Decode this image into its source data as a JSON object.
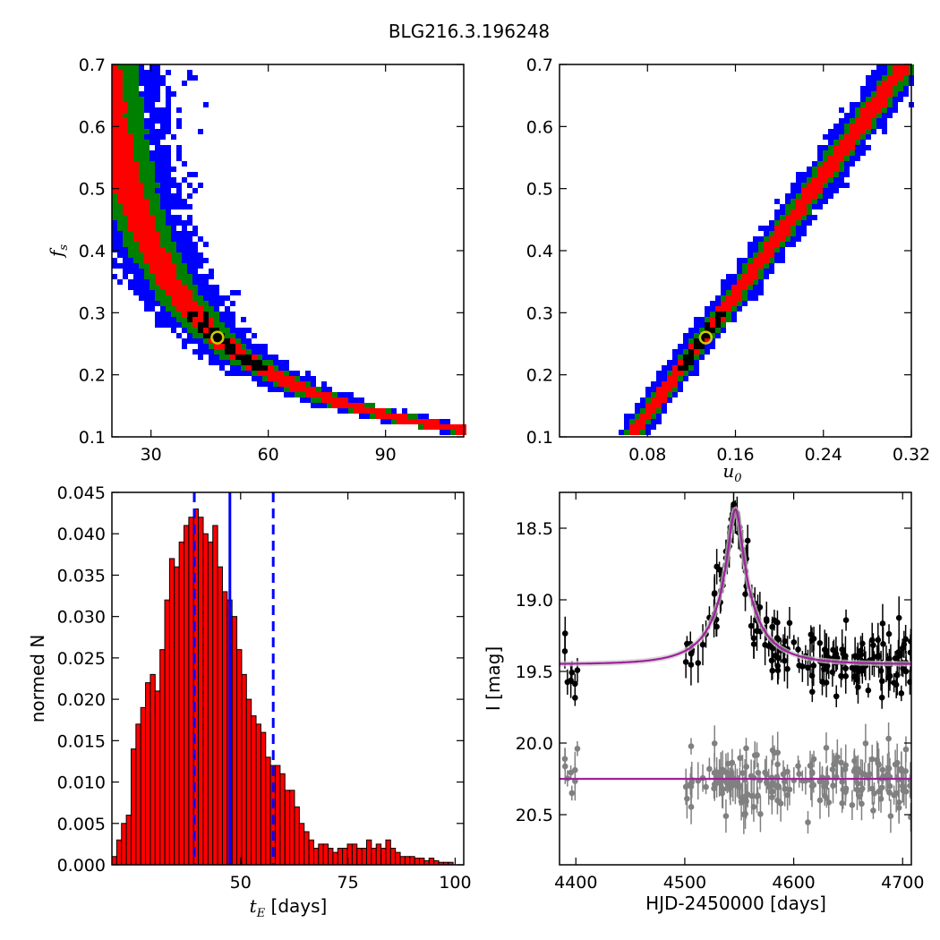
{
  "figure": {
    "title": "BLG216.3.196248"
  },
  "colors": {
    "mcmc_outer": "#0000ff",
    "mcmc_mid": "#008000",
    "mcmc_inner": "#ff0000",
    "mcmc_core": "#000000",
    "best_fit_marker_edge": "#cccc00",
    "hist_bar": "#ff0000",
    "median_line": "#0000ff",
    "model_curve": "#a0209c",
    "data_points": "#000000",
    "residual_points": "#808080"
  },
  "chart_data": [
    {
      "id": "tE_vs_fs",
      "type": "heatmap",
      "xlabel": "",
      "ylabel": "f_s",
      "ylabel_main": "f",
      "ylabel_sub": "s",
      "xlim": [
        20,
        110
      ],
      "ylim": [
        0.1,
        0.7
      ],
      "xticks": [
        30,
        60,
        90
      ],
      "xtick_labels": [
        "30",
        "60",
        "90"
      ],
      "yticks": [
        0.1,
        0.2,
        0.3,
        0.4,
        0.5,
        0.6,
        0.7
      ],
      "ytick_labels": [
        "0.1",
        "0.2",
        "0.3",
        "0.4",
        "0.5",
        "0.6",
        "0.7"
      ],
      "relation": "fs ≈ 12.2 / tE (banana-shaped degeneracy)",
      "best_fit": {
        "x": 47.0,
        "y": 0.26
      }
    },
    {
      "id": "u0_vs_fs",
      "type": "heatmap",
      "xlabel": "u_0",
      "xlabel_main": "u",
      "xlabel_sub": "0",
      "ylabel": "",
      "xlim": [
        0.0,
        0.32
      ],
      "ylim": [
        0.1,
        0.7
      ],
      "xticks": [
        0.08,
        0.16,
        0.24,
        0.32
      ],
      "xtick_labels": [
        "0.08",
        "0.16",
        "0.24",
        "0.32"
      ],
      "yticks": [
        0.1,
        0.2,
        0.3,
        0.4,
        0.5,
        0.6,
        0.7
      ],
      "ytick_labels": [
        "0.1",
        "0.2",
        "0.3",
        "0.4",
        "0.5",
        "0.6",
        "0.7"
      ],
      "relation": "fs ≈ 2.4 * u0 - 0.055 (linear degeneracy)",
      "best_fit": {
        "x": 0.133,
        "y": 0.26
      }
    },
    {
      "id": "tE_histogram",
      "type": "bar",
      "xlabel": "t_E [days]",
      "xlabel_main": "t",
      "xlabel_sub": "E",
      "xlabel_unit": " [days]",
      "ylabel": "normed N",
      "xlim": [
        20,
        102
      ],
      "ylim": [
        0,
        0.045
      ],
      "xticks": [
        50,
        75,
        100
      ],
      "xtick_labels": [
        "50",
        "75",
        "100"
      ],
      "yticks": [
        0,
        0.005,
        0.01,
        0.015,
        0.02,
        0.025,
        0.03,
        0.035,
        0.04,
        0.045
      ],
      "ytick_labels": [
        "0.000",
        "0.005",
        "0.010",
        "0.015",
        "0.020",
        "0.025",
        "0.030",
        "0.035",
        "0.040",
        "0.045"
      ],
      "bin_start": 20,
      "bin_width": 1.12,
      "values": [
        0.001,
        0.003,
        0.005,
        0.006,
        0.014,
        0.017,
        0.019,
        0.022,
        0.023,
        0.021,
        0.026,
        0.032,
        0.037,
        0.036,
        0.039,
        0.041,
        0.042,
        0.043,
        0.042,
        0.04,
        0.039,
        0.041,
        0.036,
        0.033,
        0.032,
        0.03,
        0.026,
        0.023,
        0.02,
        0.018,
        0.017,
        0.016,
        0.013,
        0.012,
        0.012,
        0.011,
        0.009,
        0.009,
        0.007,
        0.005,
        0.004,
        0.003,
        0.002,
        0.0025,
        0.0025,
        0.002,
        0.0015,
        0.002,
        0.002,
        0.0025,
        0.0025,
        0.002,
        0.002,
        0.003,
        0.002,
        0.0025,
        0.002,
        0.003,
        0.002,
        0.0015,
        0.001,
        0.001,
        0.001,
        0.0008,
        0.0008,
        0.0005,
        0.0008,
        0.0005,
        0.0003,
        0.0003,
        0.0003
      ],
      "median": 47.5,
      "interval": [
        39.2,
        57.6
      ],
      "vline_style": {
        "median": "solid",
        "interval": "dashed"
      }
    },
    {
      "id": "light_curve",
      "type": "scatter",
      "xlabel": "HJD-2450000 [days]",
      "ylabel": "I [mag]",
      "xlim": [
        4385,
        4708
      ],
      "ylim": [
        20.85,
        18.25
      ],
      "inverted_y": true,
      "xticks": [
        4400,
        4500,
        4600,
        4700
      ],
      "xtick_labels": [
        "4400",
        "4500",
        "4600",
        "4700"
      ],
      "yticks": [
        18.5,
        19.0,
        19.5,
        20.0,
        20.5
      ],
      "ytick_labels": [
        "18.5",
        "19.0",
        "19.5",
        "20.0",
        "20.5"
      ],
      "model": {
        "t0": 4546.5,
        "tE": 47,
        "u0": 0.133,
        "fs": 0.26,
        "baseline_mag": 19.45
      },
      "residual_offset_mag": 20.25,
      "series": [
        {
          "role": "data",
          "x_range": [
            4385,
            4708
          ],
          "y": "model + noise (σ≈0.12 mag)"
        },
        {
          "role": "residuals",
          "x_range": [
            4385,
            4708
          ],
          "y": "20.25 + noise (σ≈0.12 mag)"
        }
      ]
    }
  ]
}
